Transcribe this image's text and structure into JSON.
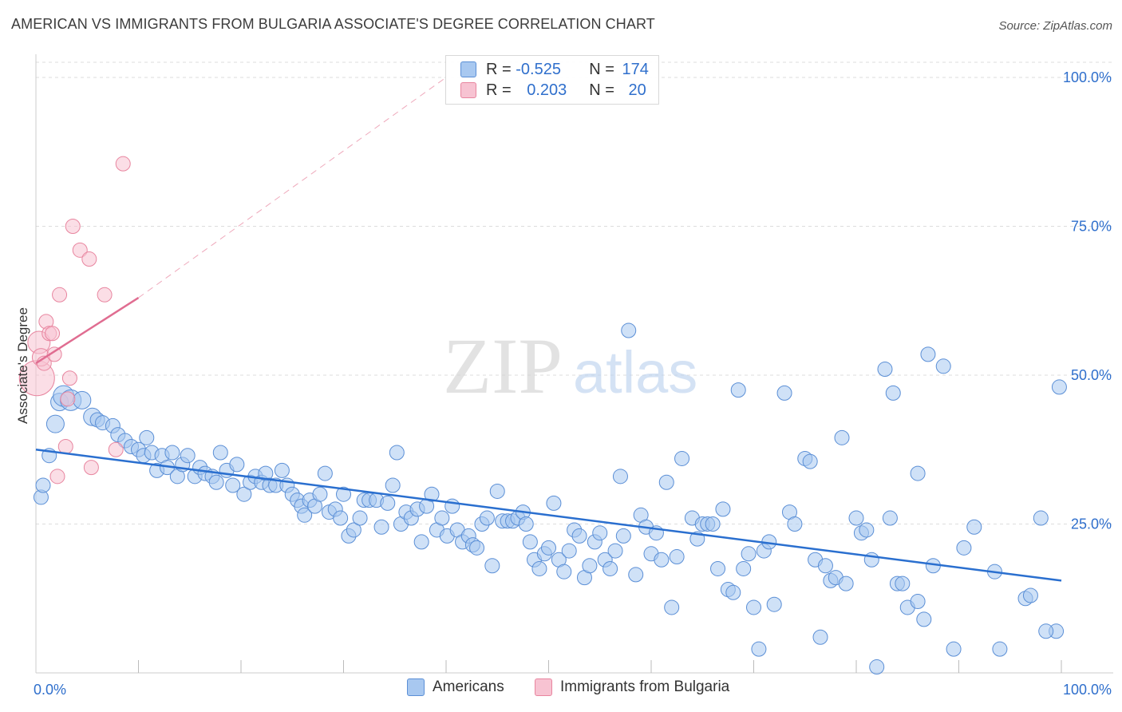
{
  "title": "AMERICAN VS IMMIGRANTS FROM BULGARIA ASSOCIATE'S DEGREE CORRELATION CHART",
  "source": "Source: ZipAtlas.com",
  "watermark": {
    "zip": "ZIP",
    "atlas": "atlas"
  },
  "colors": {
    "blue_fill": "#a8c8f0",
    "blue_stroke": "#5b8fd6",
    "blue_line": "#2a6fcf",
    "pink_fill": "#f7c3d2",
    "pink_stroke": "#e8859f",
    "pink_line": "#e06d91",
    "axis_label_blue": "#2f6fcc",
    "grid": "#dddddd"
  },
  "legend": {
    "rows": [
      {
        "r_label": "R = ",
        "r_value": "-0.525",
        "n_label": "N = ",
        "n_value": "174"
      },
      {
        "r_label": "R = ",
        "r_value": "0.203",
        "n_label": "N = ",
        "n_value": "20"
      }
    ],
    "bottom": [
      "Americans",
      "Immigrants from Bulgaria"
    ]
  },
  "chart_data": {
    "type": "scatter",
    "xlabel": "",
    "ylabel": "Associate's Degree",
    "xlim": [
      0,
      100
    ],
    "ylim": [
      0,
      100
    ],
    "x_tick_labels": [
      "0.0%",
      "100.0%"
    ],
    "y_tick_labels": [
      "25.0%",
      "50.0%",
      "75.0%",
      "100.0%"
    ],
    "y_tick_values": [
      25,
      50,
      75,
      100
    ],
    "grid": true,
    "series": [
      {
        "name": "Americans",
        "r": -0.525,
        "n": 174,
        "trend": {
          "x": [
            0,
            100
          ],
          "y": [
            37.5,
            15.5
          ]
        },
        "points": [
          [
            0.5,
            29.5,
            9
          ],
          [
            0.7,
            31.5,
            9
          ],
          [
            1.3,
            36.5,
            9
          ],
          [
            1.9,
            41.8,
            11
          ],
          [
            2.3,
            45.5,
            11
          ],
          [
            2.7,
            46.5,
            13
          ],
          [
            3.4,
            45.8,
            13
          ],
          [
            4.5,
            45.8,
            11
          ],
          [
            5.5,
            43,
            11
          ],
          [
            6.0,
            42.5,
            9
          ],
          [
            6.5,
            42,
            9
          ],
          [
            7.5,
            41.5,
            9
          ],
          [
            8.0,
            40,
            9
          ],
          [
            8.7,
            39,
            9
          ],
          [
            9.3,
            38,
            9
          ],
          [
            10.0,
            37.5,
            9
          ],
          [
            10.5,
            36.5,
            9
          ],
          [
            10.8,
            39.5,
            9
          ],
          [
            11.3,
            37,
            9
          ],
          [
            11.8,
            34,
            9
          ],
          [
            12.3,
            36.5,
            9
          ],
          [
            12.8,
            34.5,
            9
          ],
          [
            13.3,
            37,
            9
          ],
          [
            13.8,
            33,
            9
          ],
          [
            14.3,
            35,
            9
          ],
          [
            14.8,
            36.5,
            9
          ],
          [
            15.5,
            33,
            9
          ],
          [
            16.0,
            34.5,
            9
          ],
          [
            16.5,
            33.5,
            9
          ],
          [
            17.2,
            33,
            9
          ],
          [
            17.6,
            32,
            9
          ],
          [
            18.0,
            37,
            9
          ],
          [
            18.6,
            34,
            9
          ],
          [
            19.2,
            31.5,
            9
          ],
          [
            19.6,
            35,
            9
          ],
          [
            20.3,
            30,
            9
          ],
          [
            20.9,
            32,
            9
          ],
          [
            21.4,
            33,
            9
          ],
          [
            22.0,
            32,
            9
          ],
          [
            22.4,
            33.5,
            9
          ],
          [
            22.8,
            31.5,
            9
          ],
          [
            23.4,
            31.5,
            9
          ],
          [
            24.0,
            34,
            9
          ],
          [
            24.5,
            31.5,
            9
          ],
          [
            25.0,
            30,
            9
          ],
          [
            25.5,
            29,
            9
          ],
          [
            25.9,
            28,
            9
          ],
          [
            26.2,
            26.5,
            9
          ],
          [
            26.7,
            29,
            9
          ],
          [
            27.2,
            28,
            9
          ],
          [
            27.7,
            30,
            9
          ],
          [
            28.2,
            33.5,
            9
          ],
          [
            28.6,
            27,
            9
          ],
          [
            29.2,
            27.5,
            9
          ],
          [
            29.7,
            26,
            9
          ],
          [
            30.0,
            30,
            9
          ],
          [
            30.5,
            23,
            9
          ],
          [
            31.0,
            24,
            9
          ],
          [
            31.6,
            26,
            9
          ],
          [
            32.0,
            29,
            9
          ],
          [
            32.5,
            29,
            9
          ],
          [
            33.2,
            29,
            9
          ],
          [
            33.7,
            24.5,
            9
          ],
          [
            34.3,
            28.5,
            9
          ],
          [
            34.8,
            31.5,
            9
          ],
          [
            35.2,
            37,
            9
          ],
          [
            35.6,
            25,
            9
          ],
          [
            36.1,
            27,
            9
          ],
          [
            36.6,
            26,
            9
          ],
          [
            37.2,
            27.5,
            9
          ],
          [
            37.6,
            22,
            9
          ],
          [
            38.1,
            28,
            9
          ],
          [
            38.6,
            30,
            9
          ],
          [
            39.1,
            24,
            9
          ],
          [
            39.6,
            26,
            9
          ],
          [
            40.1,
            23,
            9
          ],
          [
            40.6,
            28,
            9
          ],
          [
            41.1,
            24,
            9
          ],
          [
            41.6,
            22,
            9
          ],
          [
            42.2,
            23,
            9
          ],
          [
            42.6,
            21.5,
            9
          ],
          [
            43.0,
            21,
            9
          ],
          [
            43.5,
            25,
            9
          ],
          [
            44.0,
            26,
            9
          ],
          [
            44.5,
            18,
            9
          ],
          [
            45.0,
            30.5,
            9
          ],
          [
            45.5,
            25.5,
            9
          ],
          [
            46.0,
            25.5,
            9
          ],
          [
            46.5,
            25.5,
            9
          ],
          [
            47.0,
            26,
            9
          ],
          [
            47.5,
            27,
            9
          ],
          [
            47.8,
            25,
            9
          ],
          [
            48.2,
            22,
            9
          ],
          [
            48.6,
            19,
            9
          ],
          [
            49.1,
            17.5,
            9
          ],
          [
            49.6,
            20,
            9
          ],
          [
            50.0,
            21,
            9
          ],
          [
            50.5,
            28.5,
            9
          ],
          [
            51.0,
            19,
            9
          ],
          [
            51.5,
            17,
            9
          ],
          [
            52.0,
            20.5,
            9
          ],
          [
            52.5,
            24,
            9
          ],
          [
            53.0,
            23,
            9
          ],
          [
            53.5,
            16,
            9
          ],
          [
            54.0,
            18,
            9
          ],
          [
            54.5,
            22,
            9
          ],
          [
            55.0,
            23.5,
            9
          ],
          [
            55.5,
            19,
            9
          ],
          [
            56.0,
            17.5,
            9
          ],
          [
            56.5,
            20.5,
            9
          ],
          [
            57.0,
            33,
            9
          ],
          [
            57.3,
            23,
            9
          ],
          [
            57.8,
            57.5,
            9
          ],
          [
            58.5,
            16.5,
            9
          ],
          [
            59.0,
            26.5,
            9
          ],
          [
            59.5,
            24.5,
            9
          ],
          [
            60.0,
            20,
            9
          ],
          [
            60.5,
            23.5,
            9
          ],
          [
            61.0,
            19,
            9
          ],
          [
            61.5,
            32,
            9
          ],
          [
            62.0,
            11,
            9
          ],
          [
            62.5,
            19.5,
            9
          ],
          [
            63.0,
            36,
            9
          ],
          [
            64.0,
            26,
            9
          ],
          [
            64.5,
            22.5,
            9
          ],
          [
            65.0,
            25,
            9
          ],
          [
            65.5,
            25,
            9
          ],
          [
            66.0,
            25,
            9
          ],
          [
            66.5,
            17.5,
            9
          ],
          [
            67.0,
            27.5,
            9
          ],
          [
            67.5,
            14,
            9
          ],
          [
            68.0,
            13.5,
            9
          ],
          [
            68.5,
            47.5,
            9
          ],
          [
            69.0,
            17.5,
            9
          ],
          [
            69.5,
            20,
            9
          ],
          [
            70.0,
            11,
            9
          ],
          [
            70.5,
            4,
            9
          ],
          [
            71.0,
            20.5,
            9
          ],
          [
            71.5,
            22,
            9
          ],
          [
            72.0,
            11.5,
            9
          ],
          [
            73.0,
            47,
            9
          ],
          [
            73.5,
            27,
            9
          ],
          [
            74.0,
            25,
            9
          ],
          [
            75.0,
            36,
            9
          ],
          [
            75.5,
            35.5,
            9
          ],
          [
            76.0,
            19,
            9
          ],
          [
            76.5,
            6,
            9
          ],
          [
            77.0,
            18,
            9
          ],
          [
            77.5,
            15.5,
            9
          ],
          [
            78.0,
            16,
            9
          ],
          [
            78.6,
            39.5,
            9
          ],
          [
            79.0,
            15,
            9
          ],
          [
            80.0,
            26,
            9
          ],
          [
            80.5,
            23.5,
            9
          ],
          [
            81.0,
            24,
            9
          ],
          [
            81.5,
            19,
            9
          ],
          [
            82.0,
            1,
            9
          ],
          [
            82.8,
            51,
            9
          ],
          [
            83.3,
            26,
            9
          ],
          [
            83.6,
            47,
            9
          ],
          [
            84.0,
            15,
            9
          ],
          [
            84.5,
            15,
            9
          ],
          [
            85.0,
            11,
            9
          ],
          [
            86.0,
            12,
            9
          ],
          [
            86.6,
            9,
            9
          ],
          [
            87.0,
            53.5,
            9
          ],
          [
            87.5,
            18,
            9
          ],
          [
            88.5,
            51.5,
            9
          ],
          [
            89.5,
            4,
            9
          ],
          [
            90.5,
            21,
            9
          ],
          [
            91.5,
            24.5,
            9
          ],
          [
            93.5,
            17,
            9
          ],
          [
            96.5,
            12.5,
            9
          ],
          [
            97.0,
            13,
            9
          ],
          [
            98.0,
            26,
            9
          ],
          [
            99.5,
            7,
            9
          ],
          [
            99.8,
            48,
            9
          ],
          [
            98.5,
            7,
            9
          ],
          [
            94.0,
            4,
            9
          ],
          [
            86.0,
            33.5,
            9
          ]
        ]
      },
      {
        "name": "Immigrants from Bulgaria",
        "r": 0.203,
        "n": 20,
        "trend": {
          "x": [
            0,
            10
          ],
          "y": [
            52,
            63
          ]
        },
        "trend_dashed": {
          "x": [
            10,
            40
          ],
          "y": [
            63,
            100
          ]
        },
        "points": [
          [
            0.1,
            49.5,
            22
          ],
          [
            0.3,
            55.5,
            14
          ],
          [
            0.5,
            53,
            11
          ],
          [
            0.8,
            52,
            9
          ],
          [
            1.0,
            59,
            9
          ],
          [
            1.3,
            57,
            9
          ],
          [
            1.6,
            57,
            9
          ],
          [
            1.8,
            53.5,
            9
          ],
          [
            2.1,
            33,
            9
          ],
          [
            2.3,
            63.5,
            9
          ],
          [
            2.9,
            38,
            9
          ],
          [
            3.1,
            46,
            9
          ],
          [
            3.3,
            49.5,
            9
          ],
          [
            3.6,
            75,
            9
          ],
          [
            4.3,
            71,
            9
          ],
          [
            5.2,
            69.5,
            9
          ],
          [
            5.4,
            34.5,
            9
          ],
          [
            6.7,
            63.5,
            9
          ],
          [
            7.8,
            37.5,
            9
          ],
          [
            8.5,
            85.5,
            9
          ]
        ]
      }
    ]
  }
}
